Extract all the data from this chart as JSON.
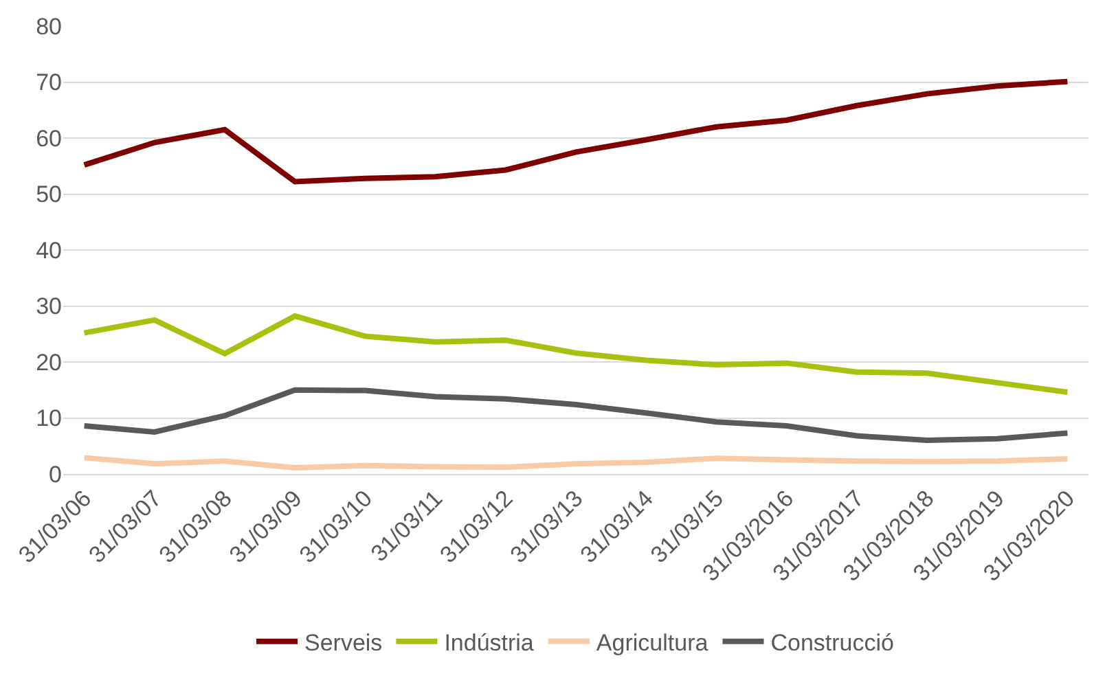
{
  "chart_data": {
    "type": "line",
    "categories": [
      "31/03/06",
      "31/03/07",
      "31/03/08",
      "31/03/09",
      "31/03/10",
      "31/03/11",
      "31/03/12",
      "31/03/13",
      "31/03/14",
      "31/03/15",
      "31/03/2016",
      "31/03/2017",
      "31/03/2018",
      "31/03/2019",
      "31/03/2020"
    ],
    "series": [
      {
        "name": "Serveis",
        "color": "#7f0000",
        "values": [
          55.2,
          59.2,
          61.5,
          52.2,
          52.8,
          53.1,
          54.3,
          57.5,
          59.7,
          62,
          63.2,
          65.8,
          67.9,
          69.3,
          70.1
        ]
      },
      {
        "name": "Indústria",
        "color": "#a9c00f",
        "values": [
          25.2,
          27.5,
          21.5,
          28.2,
          24.6,
          23.6,
          23.9,
          21.6,
          20.3,
          19.5,
          19.8,
          18.2,
          18,
          16.3,
          14.6
        ]
      },
      {
        "name": "Agricultura",
        "color": "#f8cba8",
        "values": [
          2.9,
          1.8,
          2.3,
          1.1,
          1.5,
          1.3,
          1.2,
          1.8,
          2.1,
          2.8,
          2.5,
          2.3,
          2.2,
          2.3,
          2.7
        ]
      },
      {
        "name": "Construcció",
        "color": "#595959",
        "values": [
          8.6,
          7.5,
          10.4,
          15,
          14.9,
          13.8,
          13.4,
          12.4,
          10.9,
          9.3,
          8.6,
          6.8,
          6,
          6.3,
          7.3
        ]
      }
    ],
    "ylim": [
      0,
      80
    ],
    "yticks": [
      0,
      10,
      20,
      30,
      40,
      50,
      60,
      70,
      80
    ],
    "grid": "y",
    "legend": "bottom",
    "marker": "none",
    "line_style": "solid"
  }
}
